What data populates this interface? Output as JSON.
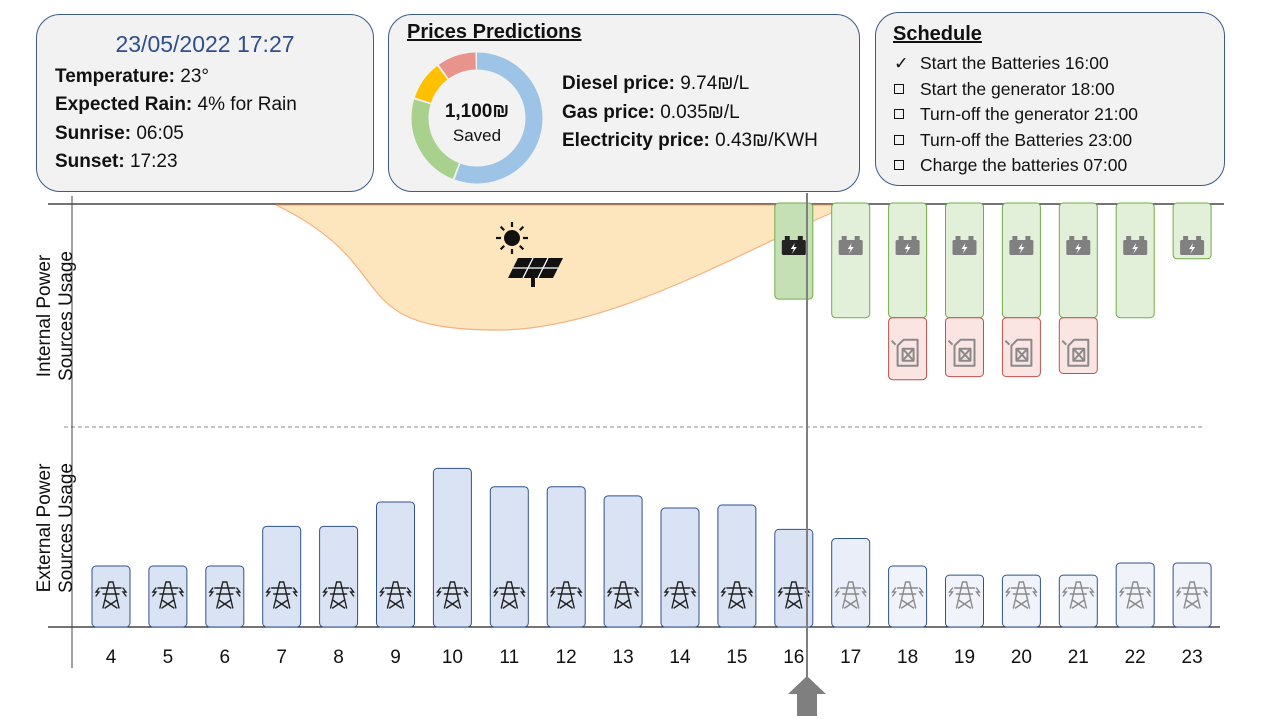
{
  "weather": {
    "datetime": "23/05/2022 17:27",
    "temperature_label": "Temperature:",
    "temperature_value": "23°",
    "rain_label": "Expected Rain:",
    "rain_value": "4%",
    "rain_suffix": "for Rain",
    "sunrise_label": "Sunrise:",
    "sunrise_value": "06:05",
    "sunset_label": "Sunset:",
    "sunset_value": "17:23"
  },
  "prices": {
    "title": "Prices Predictions",
    "saved_amount": "1,100₪",
    "saved_label": "Saved",
    "diesel_label": "Diesel price:",
    "diesel_value": "9.74₪/L",
    "gas_label": "Gas price:",
    "gas_value": "0.035₪/L",
    "electricity_label": "Electricity price:",
    "electricity_value": "0.43₪/KWH",
    "donut_segments": [
      {
        "fraction": 0.56,
        "color": "#9dc3e6"
      },
      {
        "fraction": 0.24,
        "color": "#a9d18e"
      },
      {
        "fraction": 0.1,
        "color": "#ffc000"
      },
      {
        "fraction": 0.1,
        "color": "#e8948b"
      }
    ]
  },
  "schedule": {
    "title": "Schedule",
    "items": [
      {
        "text": "Start the Batteries 16:00",
        "done": true
      },
      {
        "text": "Start the generator 18:00",
        "done": false
      },
      {
        "text": "Turn-off the generator 21:00",
        "done": false
      },
      {
        "text": "Turn-off the Batteries 23:00",
        "done": false
      },
      {
        "text": "Charge the batteries 07:00",
        "done": false
      }
    ]
  },
  "axes": {
    "internal_line1": "Internal Power",
    "internal_line2": "Sources Usage",
    "external_line1": "External Power",
    "external_line2": "Sources Usage"
  },
  "chart_data": {
    "type": "bar",
    "categories": [
      "4",
      "5",
      "6",
      "7",
      "8",
      "9",
      "10",
      "11",
      "12",
      "13",
      "14",
      "15",
      "16",
      "17",
      "18",
      "19",
      "20",
      "21",
      "22",
      "23"
    ],
    "current_hour": "17",
    "external_usage": [
      2,
      2,
      2,
      3.3,
      3.3,
      4.1,
      5.2,
      4.6,
      4.6,
      4.3,
      3.9,
      4.0,
      3.2,
      2.9,
      2.0,
      1.7,
      1.7,
      1.7,
      2.1,
      2.1
    ],
    "battery_usage": {
      "hours": [
        "16",
        "17",
        "18",
        "19",
        "20",
        "21",
        "22",
        "23"
      ],
      "values": [
        3.1,
        3.7,
        3.7,
        3.7,
        3.7,
        3.7,
        3.7,
        1.8
      ]
    },
    "generator_usage": {
      "hours": [
        "18",
        "19",
        "20",
        "21"
      ],
      "values": [
        2.0,
        1.9,
        1.9,
        1.8
      ]
    },
    "solar_curve": {
      "start_hour": 6.9,
      "peak_hour": 10.8,
      "end_hour": 17.0
    },
    "colors": {
      "grid": "#dae3f3",
      "grid_border": "#2f528f",
      "battery": "#e2f0d9",
      "battery_active": "#c5e0b4",
      "battery_border": "#70ad47",
      "generator": "#fbe5e2",
      "generator_border": "#c0504d",
      "solar": "#fde6bd",
      "solar_border": "#f4b183"
    }
  }
}
